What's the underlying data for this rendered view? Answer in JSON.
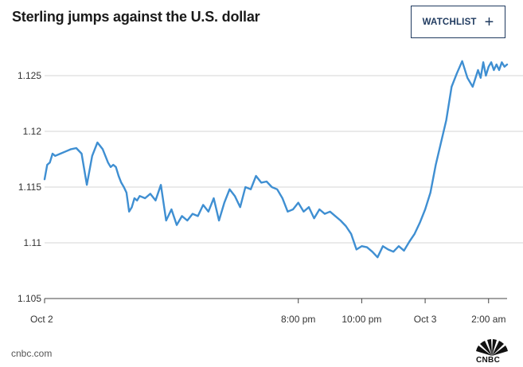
{
  "header": {
    "title": "Sterling jumps against the U.S. dollar",
    "watchlist_label": "WATCHLIST",
    "watchlist_icon": "plus-icon"
  },
  "footer": {
    "source": "cnbc.com",
    "logo_text": "CNBC"
  },
  "colors": {
    "line": "#3f8fd2",
    "grid": "#d6d6d6",
    "button_border": "#1f3a5f"
  },
  "chart_data": {
    "type": "line",
    "title": "Sterling jumps against the U.S. dollar",
    "xlabel": "",
    "ylabel": "",
    "ylim": [
      1.105,
      1.1275
    ],
    "yticks": [
      1.105,
      1.11,
      1.115,
      1.12,
      1.125
    ],
    "ytick_labels": [
      "1.105",
      "1.11",
      "1.115",
      "1.12",
      "1.125"
    ],
    "xlim": [
      "Oct 2 12:00",
      "Oct 3 02:35"
    ],
    "xticks": [
      {
        "t": "Oct 2 12:00",
        "label": "Oct 2"
      },
      {
        "t": "Oct 2 20:00",
        "label": "8:00 pm"
      },
      {
        "t": "Oct 2 22:00",
        "label": "10:00 pm"
      },
      {
        "t": "Oct 3 00:00",
        "label": "Oct 3"
      },
      {
        "t": "Oct 3 02:00",
        "label": "2:00 am"
      }
    ],
    "grid": true,
    "series": [
      {
        "x": [
          "Oct 2 12:00",
          "Oct 2 12:05",
          "Oct 2 12:10",
          "Oct 2 12:15",
          "Oct 2 12:20",
          "Oct 2 12:30",
          "Oct 2 12:40",
          "Oct 2 12:50",
          "Oct 2 13:00",
          "Oct 2 13:10",
          "Oct 2 13:20",
          "Oct 2 13:30",
          "Oct 2 13:40",
          "Oct 2 13:50",
          "Oct 2 14:00",
          "Oct 2 14:05",
          "Oct 2 14:10",
          "Oct 2 14:15",
          "Oct 2 14:20",
          "Oct 2 14:25",
          "Oct 2 14:30",
          "Oct 2 14:35",
          "Oct 2 14:40",
          "Oct 2 14:45",
          "Oct 2 14:50",
          "Oct 2 14:55",
          "Oct 2 15:00",
          "Oct 2 15:10",
          "Oct 2 15:20",
          "Oct 2 15:30",
          "Oct 2 15:40",
          "Oct 2 15:50",
          "Oct 2 16:00",
          "Oct 2 16:10",
          "Oct 2 16:20",
          "Oct 2 16:30",
          "Oct 2 16:40",
          "Oct 2 16:50",
          "Oct 2 17:00",
          "Oct 2 17:10",
          "Oct 2 17:20",
          "Oct 2 17:30",
          "Oct 2 17:40",
          "Oct 2 17:50",
          "Oct 2 18:00",
          "Oct 2 18:10",
          "Oct 2 18:20",
          "Oct 2 18:30",
          "Oct 2 18:40",
          "Oct 2 18:50",
          "Oct 2 19:00",
          "Oct 2 19:10",
          "Oct 2 19:20",
          "Oct 2 19:30",
          "Oct 2 19:40",
          "Oct 2 19:50",
          "Oct 2 20:00",
          "Oct 2 20:10",
          "Oct 2 20:20",
          "Oct 2 20:30",
          "Oct 2 20:40",
          "Oct 2 20:50",
          "Oct 2 21:00",
          "Oct 2 21:10",
          "Oct 2 21:20",
          "Oct 2 21:30",
          "Oct 2 21:40",
          "Oct 2 21:50",
          "Oct 2 22:00",
          "Oct 2 22:10",
          "Oct 2 22:20",
          "Oct 2 22:30",
          "Oct 2 22:40",
          "Oct 2 22:50",
          "Oct 2 23:00",
          "Oct 2 23:10",
          "Oct 2 23:20",
          "Oct 2 23:30",
          "Oct 2 23:40",
          "Oct 2 23:50",
          "Oct 3 00:00",
          "Oct 3 00:10",
          "Oct 3 00:20",
          "Oct 3 00:30",
          "Oct 3 00:40",
          "Oct 3 00:50",
          "Oct 3 01:00",
          "Oct 3 01:10",
          "Oct 3 01:20",
          "Oct 3 01:30",
          "Oct 3 01:40",
          "Oct 3 01:45",
          "Oct 3 01:50",
          "Oct 3 01:55",
          "Oct 3 02:00",
          "Oct 3 02:05",
          "Oct 3 02:10",
          "Oct 3 02:15",
          "Oct 3 02:20",
          "Oct 3 02:25",
          "Oct 3 02:30",
          "Oct 3 02:35"
        ],
        "y": [
          1.1157,
          1.117,
          1.1172,
          1.118,
          1.1178,
          1.118,
          1.1182,
          1.1184,
          1.1185,
          1.118,
          1.1152,
          1.1178,
          1.119,
          1.1184,
          1.1172,
          1.1168,
          1.117,
          1.1168,
          1.116,
          1.1154,
          1.115,
          1.1145,
          1.1128,
          1.1132,
          1.114,
          1.1138,
          1.1142,
          1.114,
          1.1144,
          1.1138,
          1.1152,
          1.112,
          1.113,
          1.1116,
          1.1124,
          1.112,
          1.1126,
          1.1124,
          1.1134,
          1.1128,
          1.114,
          1.112,
          1.1136,
          1.1148,
          1.1142,
          1.1132,
          1.115,
          1.1148,
          1.116,
          1.1154,
          1.1155,
          1.115,
          1.1148,
          1.114,
          1.1128,
          1.113,
          1.1136,
          1.1128,
          1.1132,
          1.1122,
          1.113,
          1.1126,
          1.1128,
          1.1124,
          1.112,
          1.1115,
          1.1108,
          1.1094,
          1.1097,
          1.1096,
          1.1092,
          1.1087,
          1.1097,
          1.1094,
          1.1092,
          1.1097,
          1.1093,
          1.1101,
          1.1108,
          1.1118,
          1.113,
          1.1145,
          1.117,
          1.119,
          1.121,
          1.124,
          1.1252,
          1.1263,
          1.1248,
          1.124,
          1.1255,
          1.1248,
          1.1262,
          1.125,
          1.1258,
          1.1262,
          1.1255,
          1.126,
          1.1255,
          1.1262,
          1.1258,
          1.126
        ]
      }
    ]
  }
}
